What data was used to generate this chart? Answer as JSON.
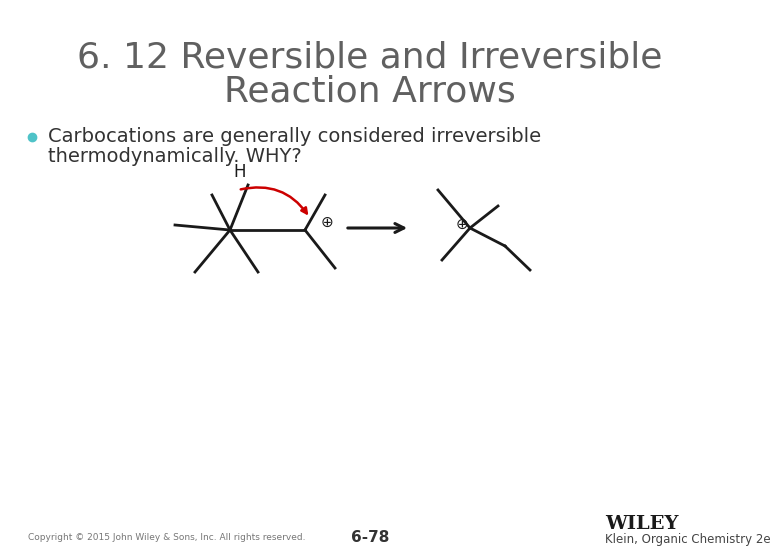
{
  "title_line1": "6. 12 Reversible and Irreversible",
  "title_line2": "Reaction Arrows",
  "bullet_text_line1": "Carbocations are generally considered irreversible",
  "bullet_text_line2": "thermodynamically. WHY?",
  "title_color": "#606060",
  "bullet_color": "#333333",
  "bullet_dot_color": "#4FC3C8",
  "background_color": "#ffffff",
  "footer_left": "Copyright © 2015 John Wiley & Sons, Inc. All rights reserved.",
  "footer_center": "6-78",
  "footer_right_bold": "WILEY",
  "footer_right_normal": "Klein, Organic Chemistry 2e",
  "molecule_color": "#1a1a1a",
  "arrow_color": "#1a1a1a",
  "curved_arrow_color": "#cc0000"
}
